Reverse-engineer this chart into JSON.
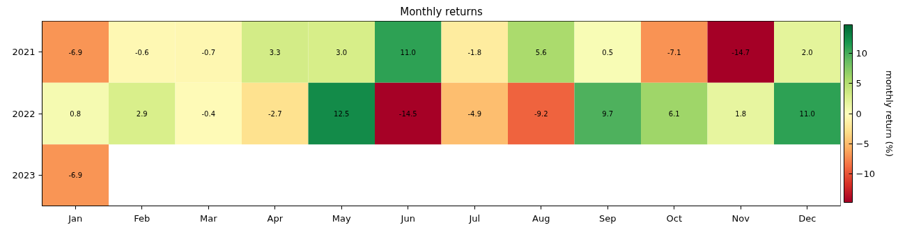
{
  "chart_data": {
    "type": "heatmap",
    "title": "Monthly returns",
    "clabel": "monthly return (%)",
    "categories": [
      "Jan",
      "Feb",
      "Mar",
      "Apr",
      "May",
      "Jun",
      "Jul",
      "Aug",
      "Sep",
      "Oct",
      "Nov",
      "Dec"
    ],
    "y_categories": [
      "2021",
      "2022",
      "2023"
    ],
    "cells": [
      [
        -6.9,
        -0.6,
        -0.7,
        3.3,
        3.0,
        11.0,
        -1.8,
        5.6,
        0.5,
        -7.1,
        -14.7,
        2.0
      ],
      [
        0.8,
        2.9,
        -0.4,
        -2.7,
        12.5,
        -14.5,
        -4.9,
        -9.2,
        9.7,
        6.1,
        1.8,
        11.0
      ],
      [
        -6.9,
        null,
        null,
        null,
        null,
        null,
        null,
        null,
        null,
        null,
        null,
        null
      ]
    ],
    "cell_labels": [
      [
        "-6.9",
        "-0.6",
        "-0.7",
        "3.3",
        "3.0",
        "11.0",
        "-1.8",
        "5.6",
        "0.5",
        "-7.1",
        "-14.7",
        "2.0"
      ],
      [
        "0.8",
        "2.9",
        "-0.4",
        "-2.7",
        "12.5",
        "-14.5",
        "-4.9",
        "-9.2",
        "9.7",
        "6.1",
        "1.8",
        "11.0"
      ],
      [
        "-6.9",
        null,
        null,
        null,
        null,
        null,
        null,
        null,
        null,
        null,
        null,
        null
      ]
    ],
    "clim": [
      -14.7,
      14.7
    ],
    "cticks": [
      -10,
      -5,
      0,
      5,
      10
    ],
    "grid": false
  }
}
